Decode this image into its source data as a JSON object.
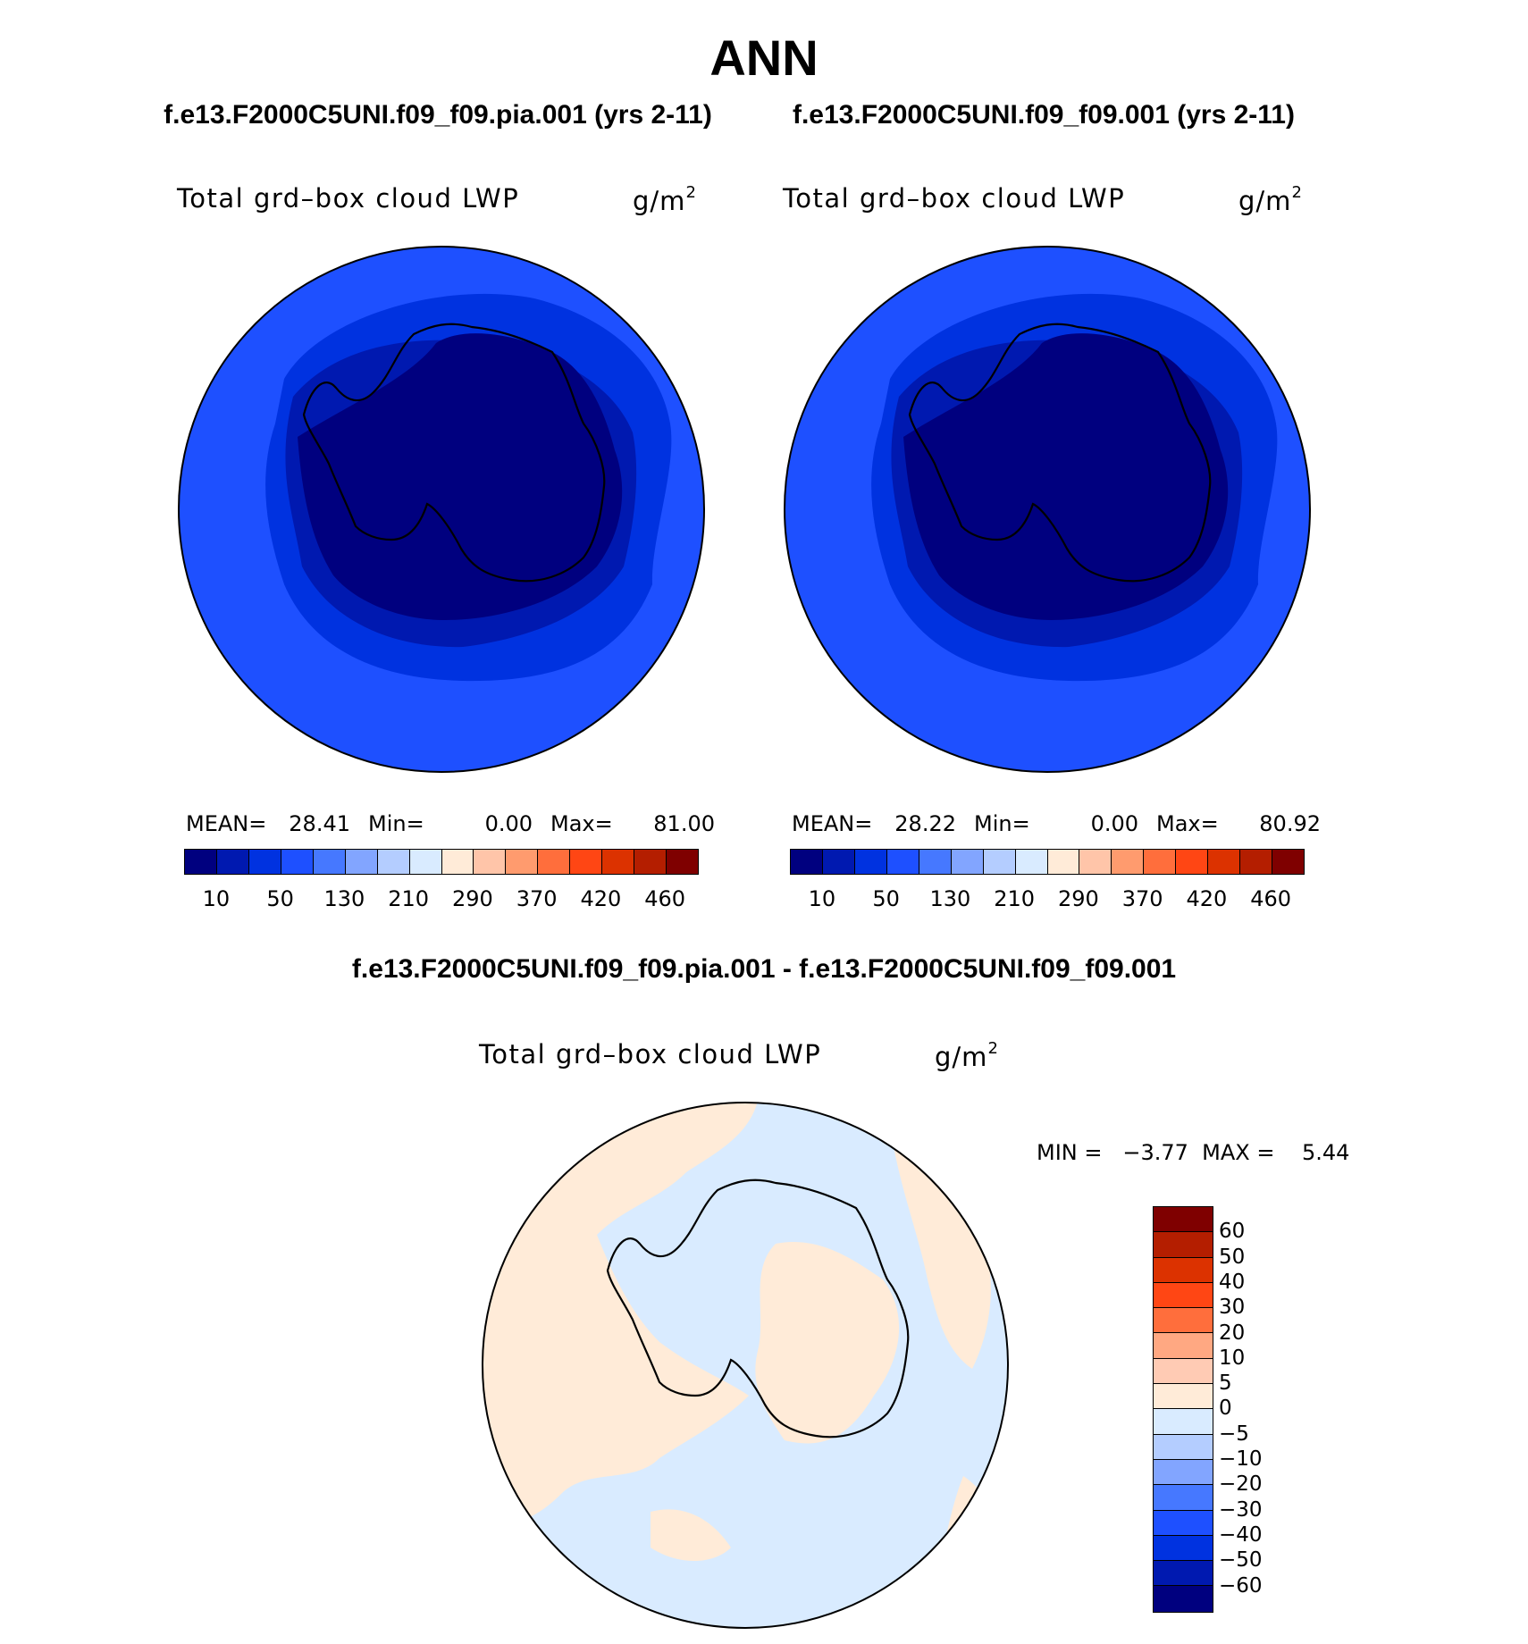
{
  "title": "ANN",
  "panels": [
    {
      "case": "f.e13.F2000C5UNI.f09_f09.pia.001 (yrs 2-11)",
      "variable": "Total grd–box cloud LWP",
      "units_base": "g/m",
      "units_exp": "2",
      "stats": {
        "mean_label": "MEAN=",
        "mean": "28.41",
        "min_label": "Min=",
        "min": "0.00",
        "max_label": "Max=",
        "max": "81.00"
      }
    },
    {
      "case": "f.e13.F2000C5UNI.f09_f09.001 (yrs 2-11)",
      "variable": "Total grd–box cloud LWP",
      "units_base": "g/m",
      "units_exp": "2",
      "stats": {
        "mean_label": "MEAN=",
        "mean": "28.22",
        "min_label": "Min=",
        "min": "0.00",
        "max_label": "Max=",
        "max": "80.92"
      }
    }
  ],
  "abs_colorbar": {
    "colors": [
      "#00007f",
      "#0019b0",
      "#0032e0",
      "#1e50ff",
      "#4678ff",
      "#82a5ff",
      "#b4cdff",
      "#d9ebff",
      "#ffebd8",
      "#ffc5a9",
      "#ff9b6e",
      "#ff6e3c",
      "#ff4614",
      "#dc3200",
      "#b41e00",
      "#7f0000"
    ],
    "tick_labels": [
      "10",
      "50",
      "130",
      "210",
      "290",
      "370",
      "420",
      "460"
    ]
  },
  "difference": {
    "title": "f.e13.F2000C5UNI.f09_f09.pia.001 - f.e13.F2000C5UNI.f09_f09.001",
    "variable": "Total grd–box cloud LWP",
    "units_base": "g/m",
    "units_exp": "2",
    "minmax_text": "MIN =   −3.77  MAX =    5.44",
    "colorbar": {
      "colors": [
        "#7f0000",
        "#b41e00",
        "#dc3200",
        "#ff4614",
        "#ff6e3c",
        "#ffa882",
        "#ffcbb4",
        "#ffebd8",
        "#d9ebff",
        "#b4cdff",
        "#82a5ff",
        "#4678ff",
        "#1e50ff",
        "#0032e0",
        "#0019b0",
        "#00007f"
      ],
      "tick_labels": [
        "60",
        "50",
        "40",
        "30",
        "20",
        "10",
        "5",
        "0",
        "−5",
        "−10",
        "−20",
        "−30",
        "−40",
        "−50",
        "−60"
      ]
    }
  },
  "map_fill": {
    "ring_outer": "#1e50ff",
    "ring_mid": "#0032e0",
    "ring_inner": "#0019b0",
    "core": "#00007f",
    "diff_pos": "#ffebd8",
    "diff_neg": "#d9ebff"
  }
}
